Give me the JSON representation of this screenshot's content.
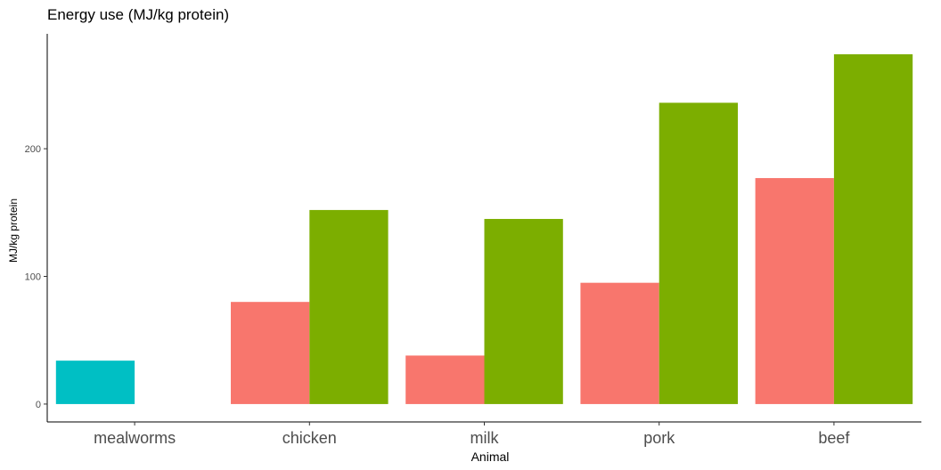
{
  "chart_data": {
    "type": "bar",
    "title": "Energy use (MJ/kg protein)",
    "xlabel": "Animal",
    "ylabel": "MJ/kg protein",
    "categories": [
      "mealworms",
      "chicken",
      "milk",
      "pork",
      "beef"
    ],
    "ylim": [
      -14,
      290
    ],
    "yticks": [
      0,
      100,
      200
    ],
    "grid": false,
    "legend": "none",
    "series": [
      {
        "color": "#00BFC4",
        "values": [
          34,
          null,
          null,
          null,
          null
        ]
      },
      {
        "color": "#F8766D",
        "values": [
          null,
          80,
          38,
          95,
          177
        ]
      },
      {
        "color": "#7CAE00",
        "values": [
          null,
          152,
          145,
          236,
          274
        ]
      }
    ]
  }
}
